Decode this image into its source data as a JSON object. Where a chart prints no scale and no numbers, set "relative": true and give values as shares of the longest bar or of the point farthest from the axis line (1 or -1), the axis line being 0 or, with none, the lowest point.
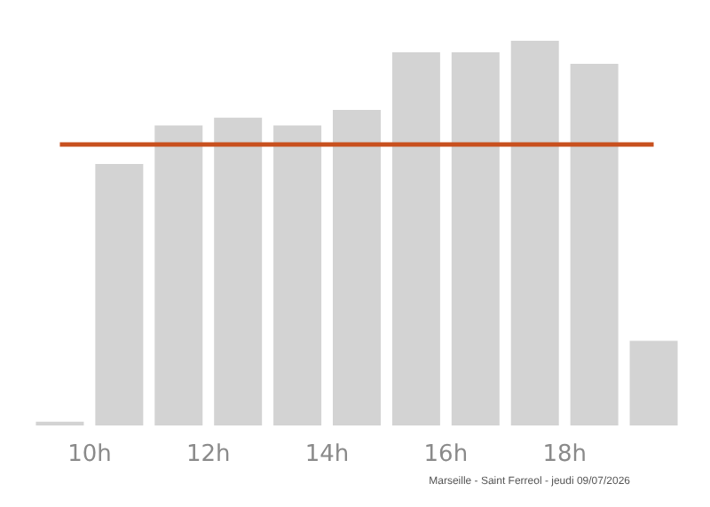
{
  "chart_data": {
    "type": "bar",
    "relative": true,
    "x": [
      9.5,
      10.5,
      11.5,
      12.5,
      13.5,
      14.5,
      15.5,
      16.5,
      17.5,
      18.5,
      19.5
    ],
    "values": [
      0.01,
      0.68,
      0.78,
      0.8,
      0.78,
      0.82,
      0.97,
      0.97,
      1,
      0.94,
      0.22
    ],
    "color": "#d3d3d3",
    "xlim": [
      9,
      20
    ],
    "xticks": [
      {
        "value": 10,
        "label": "10h"
      },
      {
        "value": 12,
        "label": "12h"
      },
      {
        "value": 14,
        "label": "14h"
      },
      {
        "value": 16,
        "label": "16h"
      },
      {
        "value": 18,
        "label": "18h"
      }
    ],
    "ref_lines": [
      {
        "axis": "y",
        "value": 0.73,
        "label": null,
        "color": "#c8501e"
      }
    ],
    "annotations": [
      "Marseille - Saint Ferreol - jeudi 09/07/2026"
    ]
  }
}
